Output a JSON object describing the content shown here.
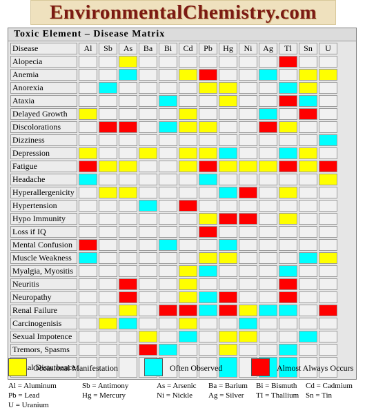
{
  "banner": {
    "text": "EnvironmentalChemistry.com"
  },
  "matrix": {
    "title": "Toxic Element – Disease Matrix",
    "disease_header": "Disease",
    "elements": [
      "Al",
      "Sb",
      "As",
      "Ba",
      "Bi",
      "Cd",
      "Pb",
      "Hg",
      "Ni",
      "Ag",
      "Tl",
      "Sn",
      "U"
    ],
    "rows": [
      {
        "label": "Alopecia",
        "cells": [
          "",
          "",
          "y",
          "",
          "",
          "",
          "",
          "",
          "",
          "",
          "r",
          "",
          ""
        ]
      },
      {
        "label": "Anemia",
        "cells": [
          "",
          "",
          "b",
          "",
          "",
          "y",
          "r",
          "",
          "",
          "b",
          "",
          "y",
          "y"
        ]
      },
      {
        "label": "Anorexia",
        "cells": [
          "",
          "b",
          "",
          "",
          "",
          "",
          "y",
          "y",
          "",
          "",
          "b",
          "y",
          ""
        ]
      },
      {
        "label": "Ataxia",
        "cells": [
          "",
          "",
          "",
          "",
          "b",
          "",
          "",
          "y",
          "",
          "",
          "r",
          "b",
          ""
        ]
      },
      {
        "label": "Delayed Growth",
        "cells": [
          "y",
          "",
          "",
          "",
          "",
          "y",
          "",
          "",
          "",
          "b",
          "",
          "r",
          ""
        ]
      },
      {
        "label": "Discolorations",
        "cells": [
          "",
          "r",
          "r",
          "",
          "b",
          "y",
          "y",
          "",
          "",
          "r",
          "y",
          "",
          ""
        ]
      },
      {
        "label": "Dizziness",
        "cells": [
          "",
          "",
          "",
          "",
          "",
          "",
          "",
          "",
          "",
          "",
          "",
          "",
          "b"
        ]
      },
      {
        "label": "Depression",
        "cells": [
          "y",
          "",
          "",
          "y",
          "",
          "y",
          "y",
          "b",
          "",
          "",
          "b",
          "y",
          ""
        ]
      },
      {
        "label": "Fatigue",
        "cells": [
          "r",
          "y",
          "y",
          "",
          "",
          "y",
          "r",
          "y",
          "y",
          "y",
          "r",
          "y",
          "r"
        ]
      },
      {
        "label": "Headache",
        "cells": [
          "b",
          "",
          "",
          "",
          "",
          "",
          "b",
          "",
          "",
          "",
          "",
          "",
          "y"
        ]
      },
      {
        "label": "Hyperallergenicity",
        "cells": [
          "",
          "y",
          "y",
          "",
          "",
          "",
          "",
          "b",
          "r",
          "",
          "y",
          "",
          ""
        ]
      },
      {
        "label": "Hypertension",
        "cells": [
          "",
          "",
          "",
          "b",
          "",
          "r",
          "",
          "",
          "",
          "",
          "",
          "",
          ""
        ]
      },
      {
        "label": "Hypo Immunity",
        "cells": [
          "",
          "",
          "",
          "",
          "",
          "",
          "y",
          "r",
          "r",
          "",
          "y",
          "",
          ""
        ]
      },
      {
        "label": "Loss if IQ",
        "cells": [
          "",
          "",
          "",
          "",
          "",
          "",
          "r",
          "",
          "",
          "",
          "",
          "",
          ""
        ]
      },
      {
        "label": "Mental Confusion",
        "cells": [
          "r",
          "",
          "",
          "",
          "b",
          "",
          "",
          "b",
          "",
          "",
          "",
          "",
          ""
        ]
      },
      {
        "label": "Muscle Weakness",
        "cells": [
          "b",
          "",
          "",
          "",
          "",
          "",
          "y",
          "y",
          "",
          "",
          "",
          "b",
          "y"
        ]
      },
      {
        "label": "Myalgia, Myositis",
        "cells": [
          "",
          "",
          "",
          "",
          "",
          "y",
          "b",
          "",
          "",
          "",
          "b",
          "",
          ""
        ]
      },
      {
        "label": "Neuritis",
        "cells": [
          "",
          "",
          "r",
          "",
          "",
          "y",
          "",
          "",
          "",
          "",
          "r",
          "",
          ""
        ]
      },
      {
        "label": "Neuropathy",
        "cells": [
          "",
          "",
          "r",
          "",
          "",
          "y",
          "b",
          "r",
          "",
          "",
          "r",
          "",
          ""
        ]
      },
      {
        "label": "Renal Failure",
        "cells": [
          "",
          "",
          "y",
          "",
          "r",
          "r",
          "b",
          "r",
          "y",
          "b",
          "b",
          "",
          "r"
        ]
      },
      {
        "label": "Carcinogenisis",
        "cells": [
          "",
          "y",
          "b",
          "",
          "",
          "y",
          "",
          "",
          "b",
          "",
          "",
          "",
          ""
        ]
      },
      {
        "label": "Sexual Impotence",
        "cells": [
          "",
          "",
          "",
          "y",
          "",
          "b",
          "",
          "y",
          "y",
          "",
          "",
          "b",
          ""
        ]
      },
      {
        "label": "Tremors, Spasms",
        "cells": [
          "",
          "",
          "",
          "r",
          "b",
          "",
          "",
          "y",
          "",
          "",
          "b",
          "",
          ""
        ]
      },
      {
        "label": "Visual Disturbance",
        "cells": [
          "",
          "",
          "",
          "",
          "",
          "",
          "",
          "b",
          "",
          "b",
          "b",
          "",
          ""
        ]
      }
    ]
  },
  "legend": {
    "occasional": "Occasional Manifestation",
    "often": "Often Observed",
    "always": "Almost Always Occurs",
    "colors": {
      "occasional": "#ffff00",
      "often": "#00ffff",
      "always": "#ff0000"
    }
  },
  "abbreviations": {
    "al": "Al = Aluminum",
    "sb": "Sb = Antimony",
    "as": "As = Arsenic",
    "ba": "Ba = Barium",
    "bi": "Bi = Bismuth",
    "cd": "Cd = Cadmium",
    "pb": "Pb = Lead",
    "hg": "Hg = Mercury",
    "ni": "Ni = Nickle",
    "ag": "Ag = Silver",
    "tl": "TI = Thallium",
    "sn": "Sn = Tin",
    "u": "U  = Uranium"
  }
}
